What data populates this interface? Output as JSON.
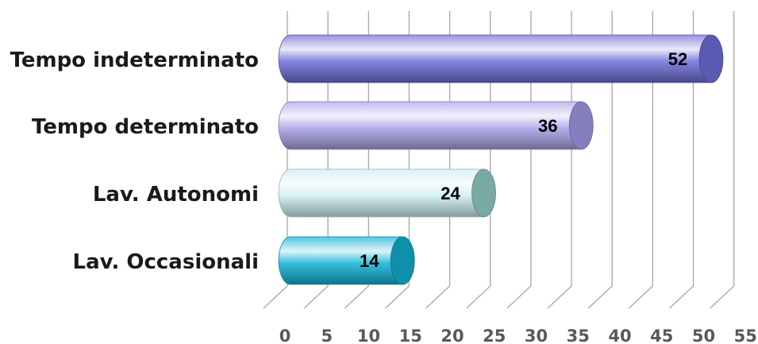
{
  "chart_data": {
    "type": "bar",
    "orientation": "horizontal",
    "style": "3d-cylinder",
    "categories": [
      "Tempo indeterminato",
      "Tempo determinato",
      "Lav. Autonomi",
      "Lav. Occasionali"
    ],
    "values": [
      52,
      36,
      24,
      14
    ],
    "xlim": [
      0,
      55
    ],
    "ticks": [
      "0",
      "5",
      "10",
      "15",
      "20",
      "25",
      "30",
      "35",
      "40",
      "45",
      "50",
      "55"
    ],
    "grid": true,
    "legend": "none",
    "colors": [
      "#6f6fd8",
      "#a9a3e6",
      "#cfeef0",
      "#14b4d8"
    ],
    "cap_colors": [
      "#5a5ab2",
      "#8480bf",
      "#7aa8a3",
      "#0f90aa"
    ]
  }
}
